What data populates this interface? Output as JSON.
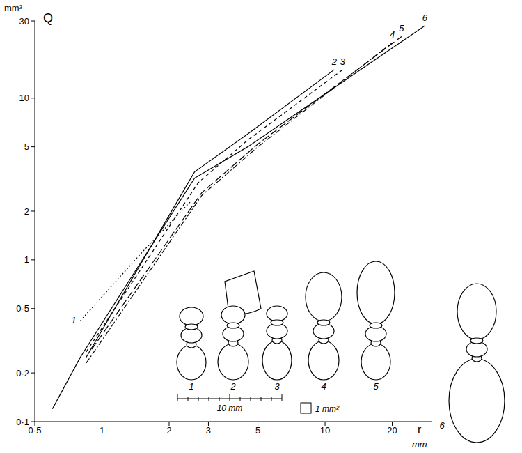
{
  "chart_data": {
    "type": "line",
    "x_label": "r",
    "x_unit": "mm",
    "y_label": "Q",
    "y_unit": "mm²",
    "log": true,
    "grid": false,
    "xlim": [
      0.5,
      30
    ],
    "ylim": [
      0.1,
      30
    ],
    "xticks": [
      {
        "value": 0.5,
        "label": "0·5"
      },
      1,
      2,
      3,
      5,
      10,
      20
    ],
    "yticks": [
      {
        "value": 0.1,
        "label": "0·1"
      },
      {
        "value": 0.2,
        "label": "0·2"
      },
      {
        "value": 0.5,
        "label": "0·5"
      },
      1,
      2,
      5,
      10,
      30
    ],
    "series": [
      {
        "name": "1",
        "color": "#000000",
        "line_style": "dotted",
        "x": [
          0.8,
          1.5,
          2.5
        ],
        "values": [
          0.42,
          1.1,
          2.3
        ]
      },
      {
        "name": "2",
        "color": "#000000",
        "line_style": "solid",
        "x": [
          0.85,
          2.6,
          4.5,
          11
        ],
        "values": [
          0.25,
          3.5,
          6,
          15
        ]
      },
      {
        "name": "3",
        "color": "#000000",
        "line_style": "dashed",
        "x": [
          0.85,
          2.7,
          4.5,
          12
        ],
        "values": [
          0.27,
          3,
          5.5,
          15
        ]
      },
      {
        "name": "4",
        "color": "#000000",
        "line_style": "dashdot",
        "x": [
          0.85,
          2.8,
          5,
          20
        ],
        "values": [
          0.23,
          2.5,
          5,
          22
        ]
      },
      {
        "name": "5",
        "color": "#000000",
        "line_style": "longdash",
        "x": [
          0.9,
          2.8,
          5,
          22
        ],
        "values": [
          0.28,
          2.6,
          5.2,
          24
        ]
      },
      {
        "name": "6",
        "color": "#000000",
        "line_style": "solid",
        "x": [
          0.6,
          0.8,
          2.6,
          4.5,
          28
        ],
        "values": [
          0.12,
          0.25,
          3.2,
          5,
          28
        ]
      }
    ]
  },
  "figures": {
    "labels": [
      "1",
      "2",
      "3",
      "4",
      "5",
      "6"
    ],
    "scale_bar": "10 mm",
    "area_key": "1 mm²"
  }
}
